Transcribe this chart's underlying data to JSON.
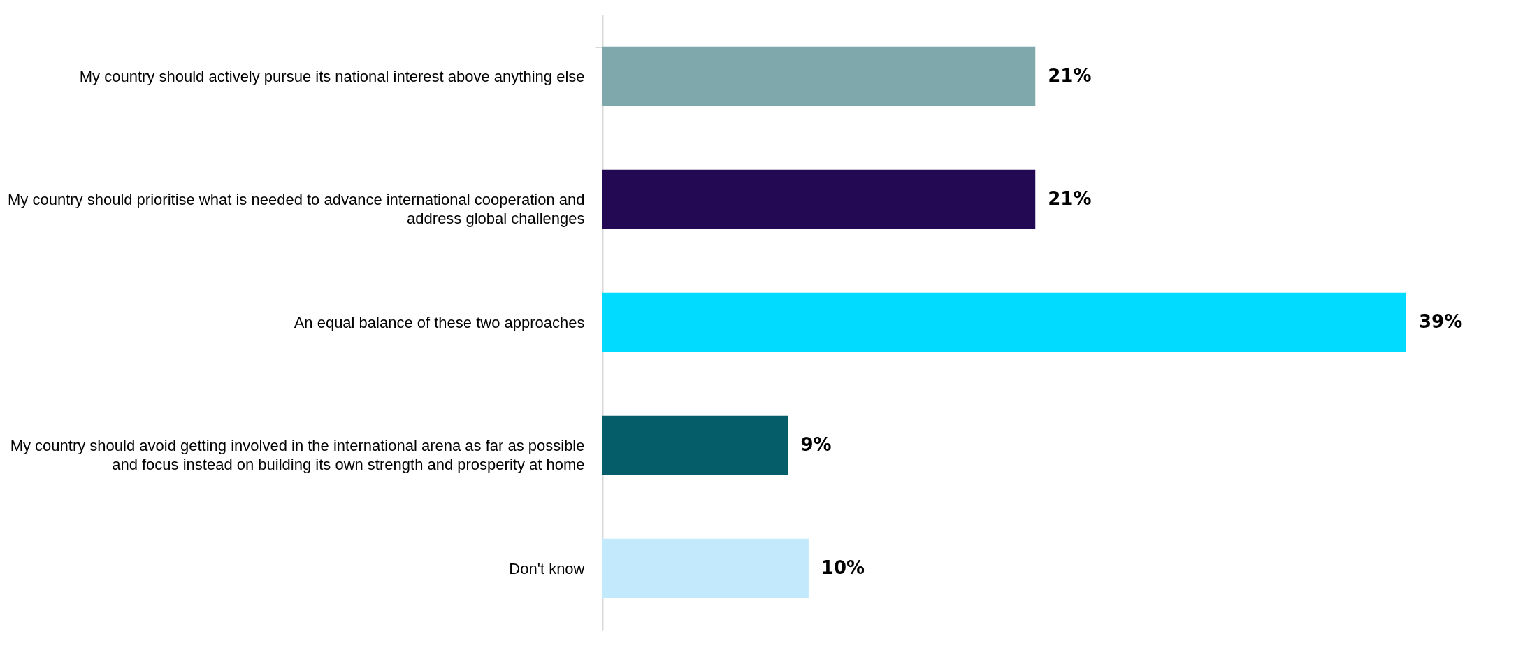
{
  "chart_data": {
    "type": "bar",
    "orientation": "horizontal",
    "categories": [
      "My country should actively pursue its national interest above anything else",
      "My country should prioritise what is needed to advance international cooperation and address global challenges",
      "An equal balance of these two approaches",
      "My country should avoid getting involved in the international arena as far as possible and focus instead on building its own strength and prosperity at home",
      "Don't know"
    ],
    "values": [
      21,
      21,
      39,
      9,
      10
    ],
    "colors": [
      "#7fa8ad",
      "#230853",
      "#00dbff",
      "#045d68",
      "#c3e9fc"
    ],
    "value_labels": [
      "21%",
      "21%",
      "39%",
      "9%",
      "10%"
    ],
    "grid": false
  }
}
